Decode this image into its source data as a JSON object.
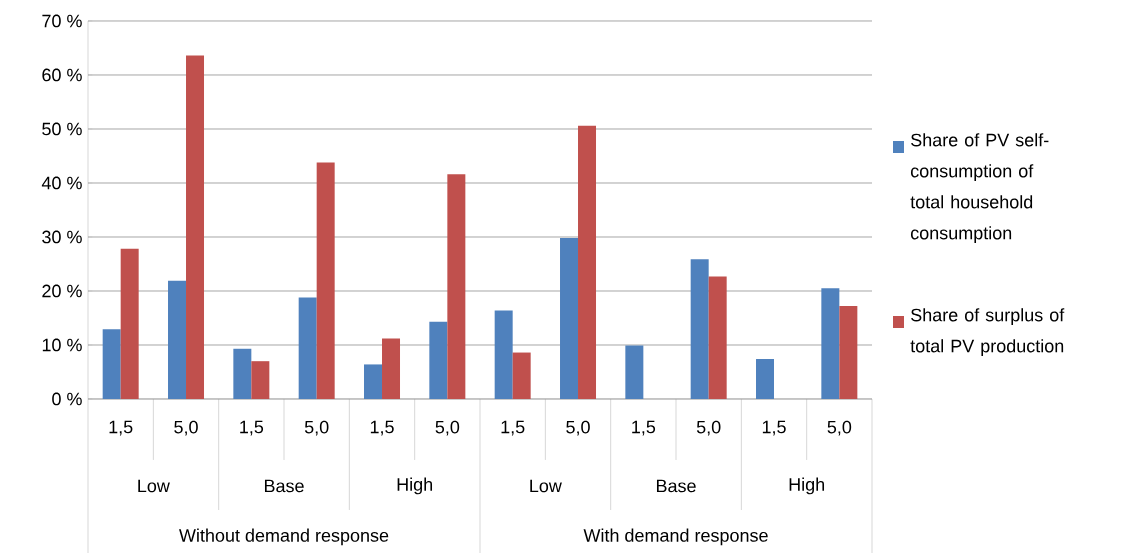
{
  "chart_data": {
    "type": "bar",
    "categories": [
      "1,5",
      "5,0",
      "1,5",
      "5,0",
      "1,5",
      "5,0",
      "1,5",
      "5,0",
      "1,5",
      "5,0",
      "1,5",
      "5,0"
    ],
    "series": [
      {
        "name": "Share of PV self-consumption of total household consumption",
        "color": "#4f81bd",
        "values": [
          12.9,
          21.9,
          9.3,
          18.8,
          6.4,
          14.3,
          16.4,
          29.8,
          9.9,
          25.9,
          7.4,
          20.5
        ]
      },
      {
        "name": "Share of surplus of total PV production",
        "color": "#c0504d",
        "values": [
          27.8,
          63.6,
          7.0,
          43.8,
          11.2,
          41.6,
          8.6,
          50.6,
          0,
          22.7,
          0,
          17.2
        ]
      }
    ],
    "ylim": [
      0,
      70
    ],
    "yticks": [
      {
        "value": 0,
        "label": "0 %"
      },
      {
        "value": 10,
        "label": "10 %"
      },
      {
        "value": 20,
        "label": "20 %"
      },
      {
        "value": 30,
        "label": "30 %"
      },
      {
        "value": 40,
        "label": "40 %"
      },
      {
        "value": 50,
        "label": "50 %"
      },
      {
        "value": 60,
        "label": "60 %"
      },
      {
        "value": 70,
        "label": "70 %"
      }
    ],
    "grid": "y",
    "legend": "right",
    "annotations": [
      "Low",
      "Base",
      "High",
      "Low",
      "Base",
      "High",
      "Without demand response",
      "With demand response"
    ]
  }
}
